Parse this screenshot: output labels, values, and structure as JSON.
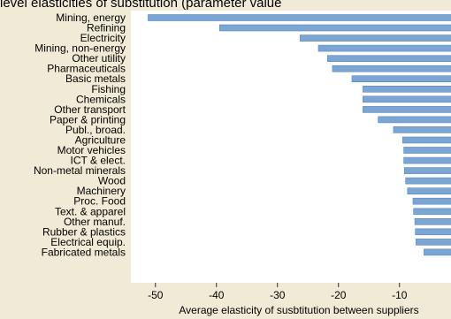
{
  "chart_data": {
    "type": "bar",
    "orientation": "horizontal",
    "title": "level elasticities of substitution (parameter value",
    "xlabel": "Average elasticity of susbtitution between suppliers",
    "ylabel": "",
    "xlim": [
      -52,
      0
    ],
    "xticks": [
      -50,
      -40,
      -30,
      -20,
      -10,
      0
    ],
    "xtick_labels": [
      "-50",
      "-40",
      "-30",
      "-20",
      "-10",
      "0"
    ],
    "bar_color": "#7ba6d4",
    "plot_background": "#ffffff",
    "page_background": "#f0ead6",
    "categories": [
      "Mining, energy",
      "Refining",
      "Electricity",
      "Mining, non-energy",
      "Other utility",
      "Pharmaceuticals",
      "Basic metals",
      "Fishing",
      "Chemicals",
      "Other transport",
      "Paper & printing",
      "Publ., broad.",
      "Agriculture",
      "Motor vehicles",
      "ICT & elect.",
      "Non-metal minerals",
      "Wood",
      "Machinery",
      "Proc. Food",
      "Text. & apparel",
      "Other manuf.",
      "Rubber & plastics",
      "Electrical equip.",
      "Fabricated metals"
    ],
    "values": [
      -51.2,
      -39.5,
      -26.3,
      -23.3,
      -21.8,
      -21.0,
      -17.8,
      -16.0,
      -16.0,
      -16.0,
      -13.5,
      -11.0,
      -9.5,
      -9.3,
      -9.3,
      -9.2,
      -9.0,
      -8.7,
      -7.8,
      -7.7,
      -7.5,
      -7.4,
      -7.3,
      -6.0
    ]
  }
}
